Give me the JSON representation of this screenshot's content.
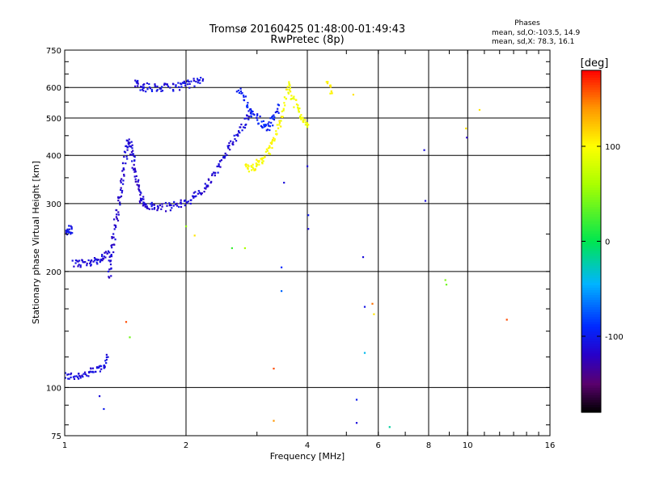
{
  "header": {
    "title_line1": "Tromsø 20160425 01:48:00-01:49:43",
    "title_line2": "RwPretec (8p)"
  },
  "phases_box": {
    "heading": "Phases",
    "line_o": "mean, sd,O:-103.5, 14.9",
    "line_x": "mean, sd,X:  78.3, 16.1"
  },
  "colorbar": {
    "unit_label": "[deg]",
    "ticks": [
      "100",
      "0",
      "-100"
    ],
    "tick_values": [
      100,
      0,
      -100
    ],
    "range": [
      -180,
      180
    ]
  },
  "chart_data": {
    "type": "scatter",
    "title": "Tromsø 20160425 01:48:00-01:49:43",
    "subtitle": "RwPretec (8p)",
    "xlabel": "Frequency [MHz]",
    "ylabel": "Stationary phase Virtual Height [km]",
    "xscale": "log",
    "yscale": "log",
    "xlim": [
      1,
      16
    ],
    "ylim": [
      75,
      750
    ],
    "x_ticks": [
      1,
      2,
      4,
      6,
      8,
      10,
      16
    ],
    "x_tick_labels": [
      "1",
      "2",
      "4",
      "6",
      "8",
      "10",
      "16"
    ],
    "y_ticks": [
      75,
      100,
      200,
      300,
      400,
      500,
      600,
      750
    ],
    "y_tick_labels": [
      "75",
      "100",
      "200",
      "300",
      "400",
      "500",
      "600",
      "750"
    ],
    "grid": true,
    "color_encodes": "phase [deg]",
    "traces": [
      {
        "x": [
          1.0,
          1.05,
          1.1,
          1.15,
          1.2,
          1.25,
          1.28
        ],
        "y": [
          107,
          107,
          108,
          109,
          111,
          114,
          120
        ],
        "phase": -110
      },
      {
        "x": [
          1.0,
          1.02,
          1.04
        ],
        "y": [
          255,
          256,
          258
        ],
        "phase": -105
      },
      {
        "x": [
          1.05,
          1.1,
          1.15,
          1.2,
          1.25,
          1.29
        ],
        "y": [
          210,
          210,
          211,
          214,
          218,
          224
        ],
        "phase": -112
      },
      {
        "x": [
          1.29,
          1.3,
          1.32,
          1.34,
          1.36,
          1.38,
          1.4,
          1.42,
          1.44,
          1.46,
          1.48,
          1.5,
          1.52,
          1.55,
          1.58,
          1.6
        ],
        "y": [
          195,
          215,
          240,
          270,
          300,
          330,
          370,
          410,
          440,
          420,
          390,
          360,
          330,
          310,
          300,
          295
        ],
        "phase": -115
      },
      {
        "x": [
          1.62,
          1.7,
          1.8,
          1.9,
          2.0,
          2.1,
          2.2,
          2.3,
          2.4,
          2.5,
          2.6,
          2.7,
          2.8,
          2.9
        ],
        "y": [
          295,
          293,
          294,
          298,
          303,
          312,
          325,
          345,
          370,
          400,
          430,
          460,
          490,
          520
        ],
        "phase": -112
      },
      {
        "x": [
          1.5,
          1.55,
          1.6,
          1.7,
          1.8,
          1.9,
          2.0,
          2.1,
          2.2
        ],
        "y": [
          620,
          605,
          600,
          598,
          600,
          605,
          610,
          618,
          625
        ],
        "phase": -108
      },
      {
        "x": [
          2.7,
          2.8,
          2.9,
          3.0,
          3.1,
          3.2,
          3.3,
          3.4
        ],
        "y": [
          600,
          560,
          520,
          500,
          480,
          470,
          500,
          540
        ],
        "phase": -95
      },
      {
        "x": [
          2.8,
          2.9,
          3.0,
          3.1,
          3.2,
          3.3,
          3.4,
          3.5,
          3.6
        ],
        "y": [
          370,
          372,
          378,
          390,
          410,
          440,
          480,
          540,
          620
        ],
        "phase": 100
      },
      {
        "x": [
          3.6,
          3.7,
          3.8,
          3.9,
          4.0
        ],
        "y": [
          600,
          560,
          520,
          500,
          480
        ],
        "phase": 95
      },
      {
        "x": [
          4.5,
          4.6
        ],
        "y": [
          610,
          580
        ],
        "phase": 105
      }
    ],
    "scattered_points": [
      {
        "x": 1.22,
        "y": 95,
        "phase": -110
      },
      {
        "x": 1.25,
        "y": 88,
        "phase": -100
      },
      {
        "x": 1.42,
        "y": 148,
        "phase": 160
      },
      {
        "x": 1.45,
        "y": 135,
        "phase": 40
      },
      {
        "x": 2.0,
        "y": 262,
        "phase": 50
      },
      {
        "x": 2.1,
        "y": 248,
        "phase": 110
      },
      {
        "x": 2.6,
        "y": 230,
        "phase": 20
      },
      {
        "x": 2.8,
        "y": 230,
        "phase": 60
      },
      {
        "x": 3.3,
        "y": 112,
        "phase": 160
      },
      {
        "x": 3.3,
        "y": 82,
        "phase": 140
      },
      {
        "x": 3.45,
        "y": 205,
        "phase": -90
      },
      {
        "x": 3.45,
        "y": 178,
        "phase": -70
      },
      {
        "x": 3.5,
        "y": 340,
        "phase": -110
      },
      {
        "x": 4.0,
        "y": 375,
        "phase": -110
      },
      {
        "x": 4.02,
        "y": 280,
        "phase": -100
      },
      {
        "x": 4.02,
        "y": 258,
        "phase": -110
      },
      {
        "x": 5.5,
        "y": 218,
        "phase": -110
      },
      {
        "x": 5.55,
        "y": 162,
        "phase": -105
      },
      {
        "x": 5.8,
        "y": 165,
        "phase": 150
      },
      {
        "x": 5.85,
        "y": 155,
        "phase": 110
      },
      {
        "x": 5.55,
        "y": 123,
        "phase": -40
      },
      {
        "x": 5.3,
        "y": 93,
        "phase": -100
      },
      {
        "x": 5.3,
        "y": 81,
        "phase": -110
      },
      {
        "x": 6.4,
        "y": 79,
        "phase": -20
      },
      {
        "x": 7.8,
        "y": 413,
        "phase": -110
      },
      {
        "x": 7.85,
        "y": 305,
        "phase": -110
      },
      {
        "x": 8.8,
        "y": 190,
        "phase": 45
      },
      {
        "x": 8.85,
        "y": 185,
        "phase": 40
      },
      {
        "x": 9.9,
        "y": 470,
        "phase": 110
      },
      {
        "x": 9.95,
        "y": 445,
        "phase": -120
      },
      {
        "x": 10.7,
        "y": 525,
        "phase": 110
      },
      {
        "x": 12.5,
        "y": 150,
        "phase": 160
      },
      {
        "x": 5.2,
        "y": 575,
        "phase": 110
      }
    ]
  }
}
